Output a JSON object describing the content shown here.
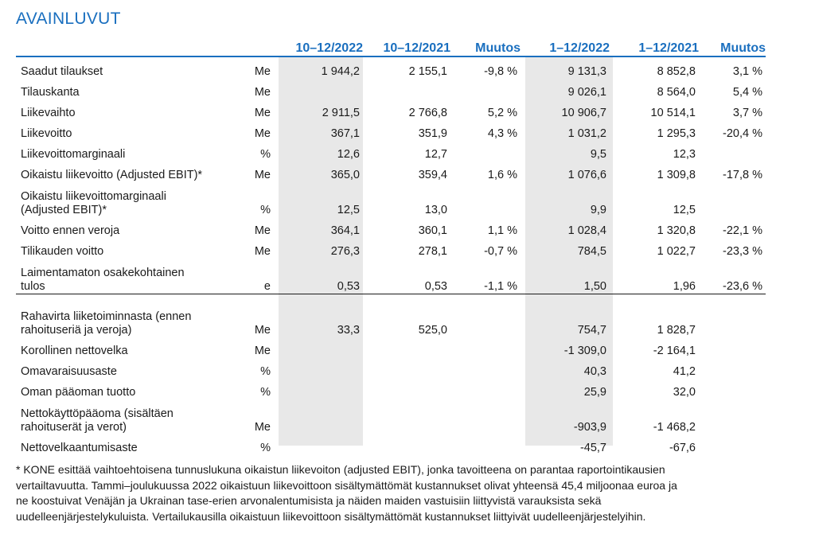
{
  "title": "AVAINLUVUT",
  "headers": [
    "10–12/2022",
    "10–12/2021",
    "Muutos",
    "1–12/2022",
    "1–12/2021",
    "Muutos"
  ],
  "rows_a": [
    {
      "label": "Saadut tilaukset",
      "unit": "Me",
      "v": [
        "1 944,2",
        "2 155,1",
        "-9,8 %",
        "9 131,3",
        "8 852,8",
        "3,1 %"
      ]
    },
    {
      "label": "Tilauskanta",
      "unit": "Me",
      "v": [
        "",
        "",
        "",
        "9 026,1",
        "8 564,0",
        "5,4 %"
      ]
    },
    {
      "label": "Liikevaihto",
      "unit": "Me",
      "v": [
        "2 911,5",
        "2 766,8",
        "5,2 %",
        "10 906,7",
        "10 514,1",
        "3,7 %"
      ]
    },
    {
      "label": "Liikevoitto",
      "unit": "Me",
      "v": [
        "367,1",
        "351,9",
        "4,3 %",
        "1 031,2",
        "1 295,3",
        "-20,4 %"
      ]
    },
    {
      "label": "Liikevoittomarginaali",
      "unit": "%",
      "v": [
        "12,6",
        "12,7",
        "",
        "9,5",
        "12,3",
        ""
      ]
    },
    {
      "label": "Oikaistu liikevoitto (Adjusted EBIT)*",
      "unit": "Me",
      "v": [
        "365,0",
        "359,4",
        "1,6 %",
        "1 076,6",
        "1 309,8",
        "-17,8 %"
      ]
    },
    {
      "label": "Oikaistu liikevoittomarginaali (Adjusted EBIT)*",
      "label_l1": "Oikaistu liikevoittomarginaali",
      "label_l2": "(Adjusted EBIT)*",
      "unit": "%",
      "v": [
        "12,5",
        "13,0",
        "",
        "9,9",
        "12,5",
        ""
      ]
    },
    {
      "label": "Voitto ennen veroja",
      "unit": "Me",
      "v": [
        "364,1",
        "360,1",
        "1,1 %",
        "1 028,4",
        "1 320,8",
        "-22,1 %"
      ]
    },
    {
      "label": "Tilikauden voitto",
      "unit": "Me",
      "v": [
        "276,3",
        "278,1",
        "-0,7 %",
        "784,5",
        "1 022,7",
        "-23,3 %"
      ]
    },
    {
      "label": "Laimentamaton osakekohtainen tulos",
      "label_l1": "Laimentamaton osakekohtainen",
      "label_l2": "tulos",
      "unit": "e",
      "v": [
        "0,53",
        "0,53",
        "-1,1 %",
        "1,50",
        "1,96",
        "-23,6 %"
      ]
    }
  ],
  "rows_b": [
    {
      "label": "Rahavirta liiketoiminnasta (ennen rahoituseriä ja veroja)",
      "label_l1": "Rahavirta liiketoiminnasta (ennen",
      "label_l2": "rahoituseriä ja veroja)",
      "unit": "Me",
      "v": [
        "33,3",
        "525,0",
        "",
        "754,7",
        "1 828,7",
        ""
      ]
    },
    {
      "label": "Korollinen nettovelka",
      "unit": "Me",
      "v": [
        "",
        "",
        "",
        "-1 309,0",
        "-2 164,1",
        ""
      ]
    },
    {
      "label": "Omavaraisuusaste",
      "unit": "%",
      "v": [
        "",
        "",
        "",
        "40,3",
        "41,2",
        ""
      ]
    },
    {
      "label": "Oman pääoman tuotto",
      "unit": "%",
      "v": [
        "",
        "",
        "",
        "25,9",
        "32,0",
        ""
      ]
    },
    {
      "label": "Nettokäyttöpääoma (sisältäen rahoituserät ja verot)",
      "label_l1": "Nettokäyttöpääoma (sisältäen",
      "label_l2": "rahoituserät ja verot)",
      "unit": "Me",
      "v": [
        "",
        "",
        "",
        "-903,9",
        "-1 468,2",
        ""
      ]
    },
    {
      "label": "Nettovelkaantumisaste",
      "unit": "%",
      "v": [
        "",
        "",
        "",
        "-45,7",
        "-67,6",
        ""
      ]
    }
  ],
  "footnote_lines": [
    "* KONE esittää vaihtoehtoisena tunnuslukuna oikaistun liikevoiton (adjusted EBIT), jonka tavoitteena on parantaa raportointikausien",
    "vertailtavuutta. Tammi–joulukuussa 2022 oikaistuun liikevoittoon sisältymättömät kustannukset olivat yhteensä 45,4 miljoonaa euroa ja",
    "ne koostuivat Venäjän ja Ukrainan tase-erien arvonalentumisista ja näiden maiden vastuisiin liittyvistä varauksista sekä",
    "uudelleenjärjestelykuluista. Vertailukausilla oikaistuun liikevoittoon sisältymättömät kustannukset liittyivät uudelleenjärjestelyihin."
  ]
}
